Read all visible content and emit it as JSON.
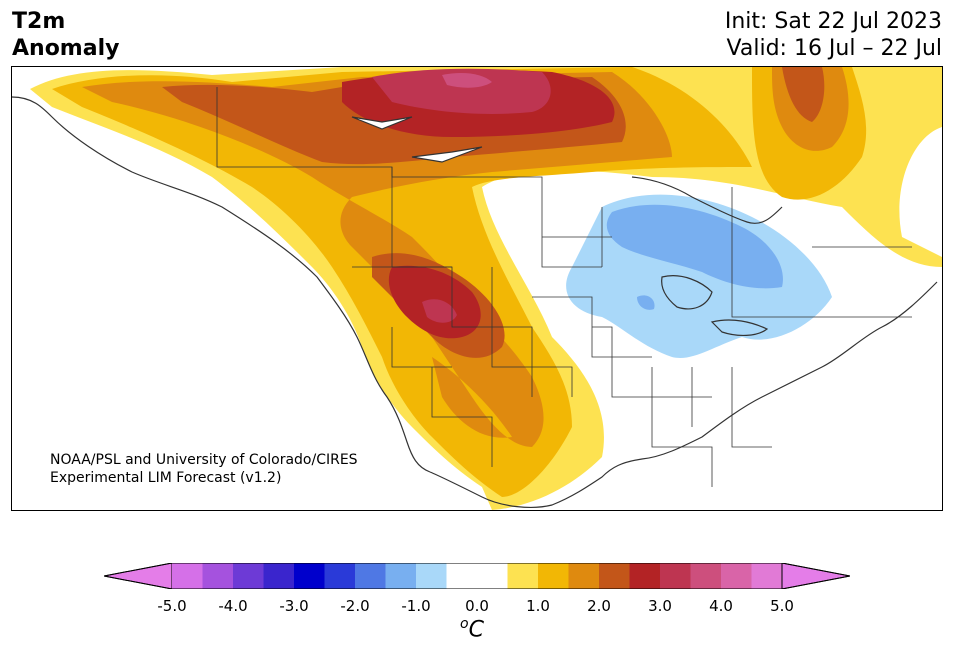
{
  "header": {
    "title_line1": "T2m",
    "title_line2": "Anomaly",
    "init_label": "Init: Sat 22 Jul 2023",
    "valid_label": "Valid: 16 Jul – 22 Jul"
  },
  "credit": {
    "line1": "NOAA/PSL and University of Colorado/CIRES",
    "line2": "Experimental LIM Forecast (v1.2)"
  },
  "colorbar": {
    "unit_symbol": "o",
    "unit_letter": "C",
    "tick_labels": [
      "-5.0",
      "-4.0",
      "-3.0",
      "-2.0",
      "-1.0",
      "0.0",
      "1.0",
      "2.0",
      "3.0",
      "4.0",
      "5.0"
    ],
    "min": -5.0,
    "max": 5.0,
    "step": 0.5,
    "under_color": "#e47de8",
    "over_color": "#e47de8",
    "colors": [
      "#d570e8",
      "#a552de",
      "#6d3ad6",
      "#3a25cd",
      "#0000cc",
      "#2a3ad8",
      "#4f78e4",
      "#78aff0",
      "#a9d8f9",
      "#ffffff",
      "#ffffff",
      "#fde251",
      "#f2b705",
      "#df8a0f",
      "#c35619",
      "#b32325",
      "#be3551",
      "#cd4f7d",
      "#d964a8",
      "#e17ad6"
    ]
  },
  "map": {
    "land_color": "#ffffff",
    "border_color": "#333333"
  }
}
